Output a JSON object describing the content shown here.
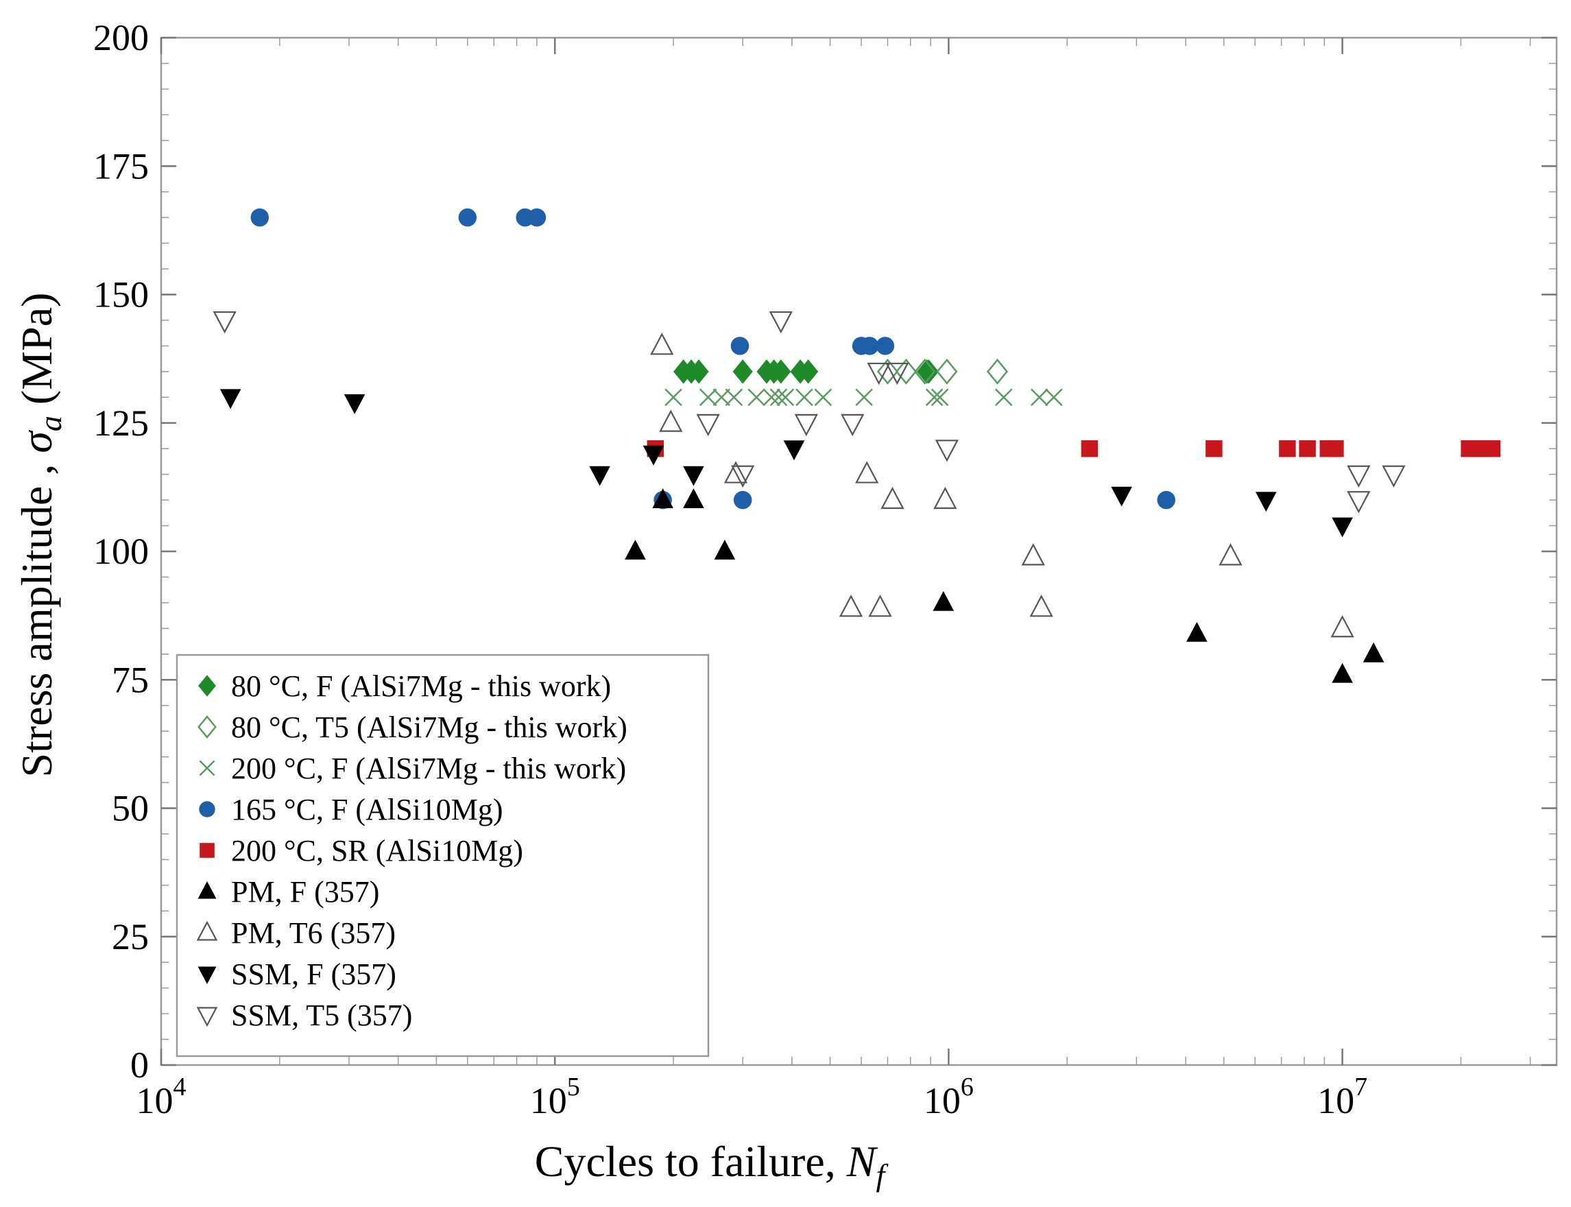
{
  "chart_data": {
    "type": "scatter",
    "x_scale": "log",
    "xlim": [
      10000,
      35000000
    ],
    "ylim": [
      0,
      200
    ],
    "xlabel": "Cycles to failure, ",
    "xlabel_var": "N",
    "xlabel_sub": "f",
    "ylabel": "Stress amplitude , ",
    "ylabel_var": "σ",
    "ylabel_sub": "a",
    "ylabel_unit": " (MPa)",
    "x_ticks": [
      {
        "value": 10000,
        "base": "10",
        "exp": "4"
      },
      {
        "value": 100000,
        "base": "10",
        "exp": "5"
      },
      {
        "value": 1000000,
        "base": "10",
        "exp": "6"
      },
      {
        "value": 10000000,
        "base": "10",
        "exp": "7"
      }
    ],
    "y_ticks": [
      0,
      25,
      50,
      75,
      100,
      125,
      150,
      175,
      200
    ],
    "grid": false,
    "legend_position": "bottom-left",
    "series": [
      {
        "name": "80 °C, F (AlSi7Mg - this work)",
        "marker": "diamond-filled",
        "color": "#1e8a2a",
        "points": [
          [
            212000,
            135
          ],
          [
            222000,
            135
          ],
          [
            232000,
            135
          ],
          [
            300000,
            135
          ],
          [
            345000,
            135
          ],
          [
            360000,
            135
          ],
          [
            375000,
            135
          ],
          [
            420000,
            135
          ],
          [
            440000,
            135
          ],
          [
            880000,
            135
          ],
          [
            890000,
            135
          ]
        ]
      },
      {
        "name": "80 °C, T5 (AlSi7Mg - this work)",
        "marker": "diamond-open",
        "color": "#5a9a63",
        "points": [
          [
            700000,
            135
          ],
          [
            780000,
            135
          ],
          [
            870000,
            135
          ],
          [
            990000,
            135
          ],
          [
            1330000,
            135
          ]
        ]
      },
      {
        "name": "200 °C, F (AlSi7Mg - this work)",
        "marker": "x",
        "color": "#5a9a63",
        "points": [
          [
            200000,
            130
          ],
          [
            245000,
            130
          ],
          [
            265000,
            130
          ],
          [
            285000,
            130
          ],
          [
            325000,
            130
          ],
          [
            355000,
            130
          ],
          [
            370000,
            130
          ],
          [
            385000,
            130
          ],
          [
            430000,
            130
          ],
          [
            480000,
            130
          ],
          [
            610000,
            130
          ],
          [
            920000,
            130
          ],
          [
            950000,
            130
          ],
          [
            1380000,
            130
          ],
          [
            1700000,
            130
          ],
          [
            1850000,
            130
          ]
        ]
      },
      {
        "name": "165 °C, F (AlSi10Mg)",
        "marker": "circle-filled",
        "color": "#1f5fa8",
        "points": [
          [
            17800,
            165
          ],
          [
            60000,
            165
          ],
          [
            84000,
            165
          ],
          [
            90000,
            165
          ],
          [
            295000,
            140
          ],
          [
            600000,
            140
          ],
          [
            630000,
            140
          ],
          [
            690000,
            140
          ],
          [
            188000,
            110
          ],
          [
            300000,
            110
          ],
          [
            3570000,
            110
          ]
        ]
      },
      {
        "name": "200 °C, SR (AlSi10Mg)",
        "marker": "square-filled",
        "color": "#c8171c",
        "points": [
          [
            180000,
            120
          ],
          [
            2280000,
            120
          ],
          [
            4720000,
            120
          ],
          [
            7250000,
            120
          ],
          [
            8150000,
            120
          ],
          [
            9200000,
            120
          ],
          [
            9600000,
            120
          ],
          [
            21000000,
            120
          ],
          [
            22500000,
            120
          ],
          [
            24000000,
            120
          ]
        ]
      },
      {
        "name": "PM, F (357)",
        "marker": "triangle-up-filled",
        "color": "#000000",
        "points": [
          [
            160000,
            100
          ],
          [
            188000,
            110
          ],
          [
            225000,
            110
          ],
          [
            270000,
            100
          ],
          [
            970000,
            90
          ],
          [
            4270000,
            84
          ],
          [
            10000000,
            76
          ],
          [
            12000000,
            80
          ]
        ]
      },
      {
        "name": "PM, T6 (357)",
        "marker": "triangle-up-open",
        "color": "#555555",
        "points": [
          [
            187000,
            140
          ],
          [
            197000,
            125
          ],
          [
            288000,
            115
          ],
          [
            565000,
            89
          ],
          [
            670000,
            89
          ],
          [
            620000,
            115
          ],
          [
            720000,
            110
          ],
          [
            980000,
            110
          ],
          [
            1640000,
            99
          ],
          [
            1720000,
            89
          ],
          [
            5200000,
            99
          ],
          [
            10000000,
            85
          ]
        ]
      },
      {
        "name": "SSM, F (357)",
        "marker": "triangle-down-filled",
        "color": "#000000",
        "points": [
          [
            15000,
            130
          ],
          [
            31000,
            129
          ],
          [
            130000,
            115
          ],
          [
            178000,
            119
          ],
          [
            225000,
            115
          ],
          [
            405000,
            120
          ],
          [
            2750000,
            111
          ],
          [
            6400000,
            110
          ],
          [
            10000000,
            105
          ]
        ]
      },
      {
        "name": "SSM, T5 (357)",
        "marker": "triangle-down-open",
        "color": "#555555",
        "points": [
          [
            14500,
            145
          ],
          [
            245000,
            125
          ],
          [
            300000,
            115
          ],
          [
            375000,
            145
          ],
          [
            435000,
            125
          ],
          [
            570000,
            125
          ],
          [
            665000,
            135
          ],
          [
            740000,
            135
          ],
          [
            990000,
            120
          ],
          [
            11000000,
            115
          ],
          [
            11000000,
            110
          ],
          [
            13500000,
            115
          ]
        ]
      }
    ]
  }
}
